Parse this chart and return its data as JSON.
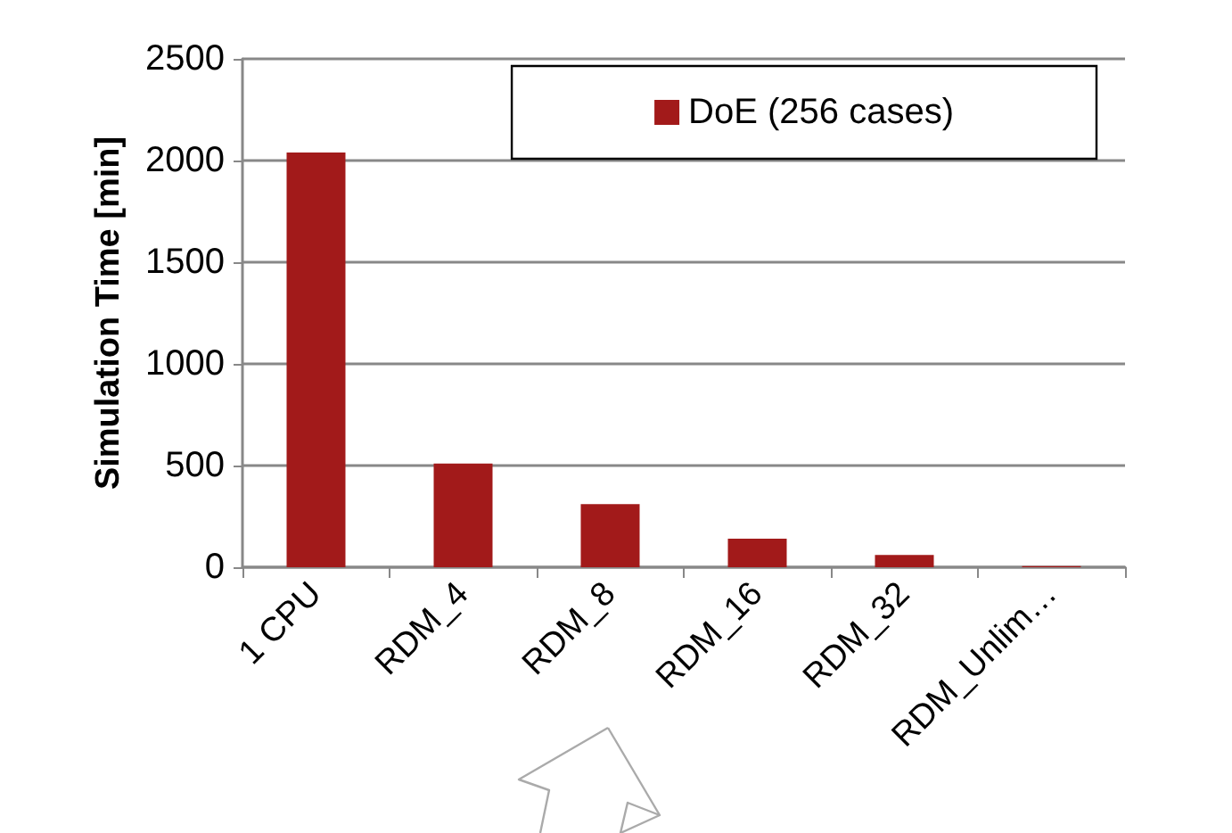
{
  "chart_data": {
    "type": "bar",
    "ylabel": "Simulation Time [min]",
    "categories": [
      "1 CPU",
      "RDM_4",
      "RDM_8",
      "RDM_16",
      "RDM_32",
      "RDM_Unlim…"
    ],
    "series": [
      {
        "name": "DoE (256 cases)",
        "color": "#a21a1a",
        "values": [
          2040,
          510,
          310,
          140,
          60,
          5
        ]
      }
    ],
    "ylim": [
      0,
      2500
    ],
    "yticks": [
      0,
      500,
      1000,
      1500,
      2000,
      2500
    ],
    "grid": "y",
    "legend": "top right"
  }
}
